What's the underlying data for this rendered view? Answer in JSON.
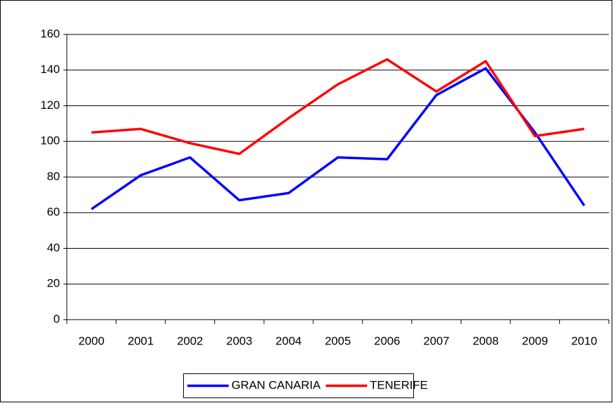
{
  "chart_data": {
    "type": "line",
    "categories": [
      "2000",
      "2001",
      "2002",
      "2003",
      "2004",
      "2005",
      "2006",
      "2007",
      "2008",
      "2009",
      "2010"
    ],
    "series": [
      {
        "name": "GRAN CANARIA",
        "color": "#0000ff",
        "values": [
          62,
          81,
          91,
          67,
          71,
          91,
          90,
          126,
          141,
          105,
          64
        ]
      },
      {
        "name": "TENERIFE",
        "color": "#ff0000",
        "values": [
          105,
          107,
          99,
          93,
          113,
          132,
          146,
          128,
          145,
          103,
          107
        ]
      }
    ],
    "ylim": [
      0,
      160
    ],
    "yticks": [
      0,
      20,
      40,
      60,
      80,
      100,
      120,
      140,
      160
    ],
    "grid": true,
    "legend": "bottom"
  }
}
